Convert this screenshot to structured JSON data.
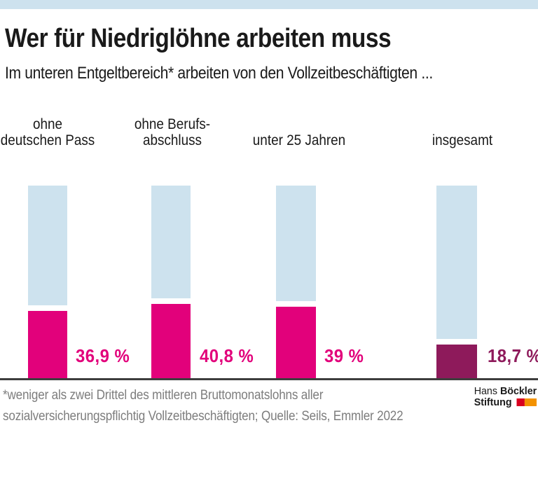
{
  "header": {
    "title": "Wer für Niedriglöhne arbeiten muss",
    "subtitle": "Im unteren Entgeltbereich* arbeiten von den Vollzeitbeschäftigten ..."
  },
  "chart_data": {
    "type": "bar",
    "orientation": "vertical",
    "title": "Wer für Niedriglöhne arbeiten muss",
    "subtitle": "Im unteren Entgeltbereich* arbeiten von den Vollzeitbeschäftigten ...",
    "unit": "%",
    "categories": [
      "ohne deutschen Pass",
      "ohne Berufsabschluss",
      "unter 25 Jahren",
      "insgesamt"
    ],
    "category_lines": [
      [
        "ohne",
        "deutschen Pass"
      ],
      [
        "ohne Berufs-",
        "abschluss"
      ],
      [
        "unter 25 Jahren"
      ],
      [
        "insgesamt"
      ]
    ],
    "values": [
      36.9,
      40.8,
      39,
      18.7
    ],
    "value_labels": [
      "36,9 %",
      "40,8 %",
      "39 %",
      "18,7 %"
    ],
    "bar_colors": [
      "#e2017b",
      "#e2017b",
      "#e2017b",
      "#8e1a5b"
    ],
    "label_colors": [
      "#e2017b",
      "#e2017b",
      "#e2017b",
      "#8e1a5b"
    ],
    "track_color": "#cde2ee",
    "ylim": [
      0,
      105
    ],
    "grid": false,
    "legend": false
  },
  "footnote": {
    "line1": "*weniger als zwei Drittel des mittleren Bruttomonatslohns aller",
    "line2": "sozialversicherungspflichtig Vollzeitbeschäftigten; Quelle: Seils, Emmler 2022"
  },
  "logo": {
    "name_regular": "Hans",
    "name_bold": "Böckler",
    "line2_bold": "Stiftung",
    "red": "#d8001e",
    "orange": "#f39200"
  },
  "colors": {
    "accent_blue": "#cde2ee",
    "magenta": "#e2017b",
    "dark_magenta": "#8e1a5b",
    "baseline": "#3d3d3d",
    "footnote_gray": "#7d7d7d",
    "text": "#1a1a1a"
  }
}
